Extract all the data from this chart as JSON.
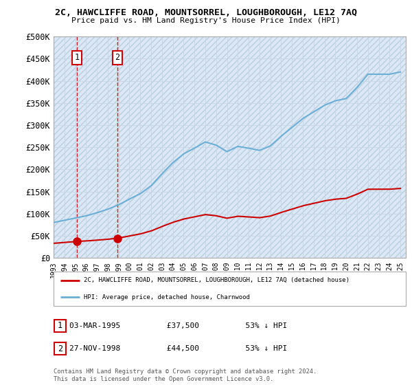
{
  "title": "2C, HAWCLIFFE ROAD, MOUNTSORREL, LOUGHBOROUGH, LE12 7AQ",
  "subtitle": "Price paid vs. HM Land Registry's House Price Index (HPI)",
  "ylabel_ticks": [
    "£0",
    "£50K",
    "£100K",
    "£150K",
    "£200K",
    "£250K",
    "£300K",
    "£350K",
    "£400K",
    "£450K",
    "£500K"
  ],
  "ytick_values": [
    0,
    50000,
    100000,
    150000,
    200000,
    250000,
    300000,
    350000,
    400000,
    450000,
    500000
  ],
  "ylim": [
    0,
    500000
  ],
  "xlim_start": 1993.0,
  "xlim_end": 2025.5,
  "hpi_color": "#6baed6",
  "price_color": "#cc0000",
  "background_plot": "#dce8f5",
  "sale1_x": 1995.17,
  "sale1_y": 37500,
  "sale2_x": 1998.9,
  "sale2_y": 44500,
  "legend_line1": "2C, HAWCLIFFE ROAD, MOUNTSORREL, LOUGHBOROUGH, LE12 7AQ (detached house)",
  "legend_line2": "HPI: Average price, detached house, Charnwood",
  "sale1_date": "03-MAR-1995",
  "sale1_price": "£37,500",
  "sale1_hpi_pct": "53% ↓ HPI",
  "sale2_date": "27-NOV-1998",
  "sale2_price": "£44,500",
  "sale2_hpi_pct": "53% ↓ HPI",
  "footer": "Contains HM Land Registry data © Crown copyright and database right 2024.\nThis data is licensed under the Open Government Licence v3.0.",
  "xtick_years": [
    1993,
    1994,
    1995,
    1996,
    1997,
    1998,
    1999,
    2000,
    2001,
    2002,
    2003,
    2004,
    2005,
    2006,
    2007,
    2008,
    2009,
    2010,
    2011,
    2012,
    2013,
    2014,
    2015,
    2016,
    2017,
    2018,
    2019,
    2020,
    2021,
    2022,
    2023,
    2024,
    2025
  ],
  "hpi_values": [
    80000,
    85000,
    90000,
    95000,
    102000,
    110000,
    120000,
    133000,
    145000,
    163000,
    190000,
    215000,
    235000,
    248000,
    262000,
    255000,
    240000,
    252000,
    248000,
    243000,
    253000,
    275000,
    295000,
    315000,
    330000,
    345000,
    355000,
    360000,
    385000,
    415000,
    415000,
    415000,
    420000
  ]
}
